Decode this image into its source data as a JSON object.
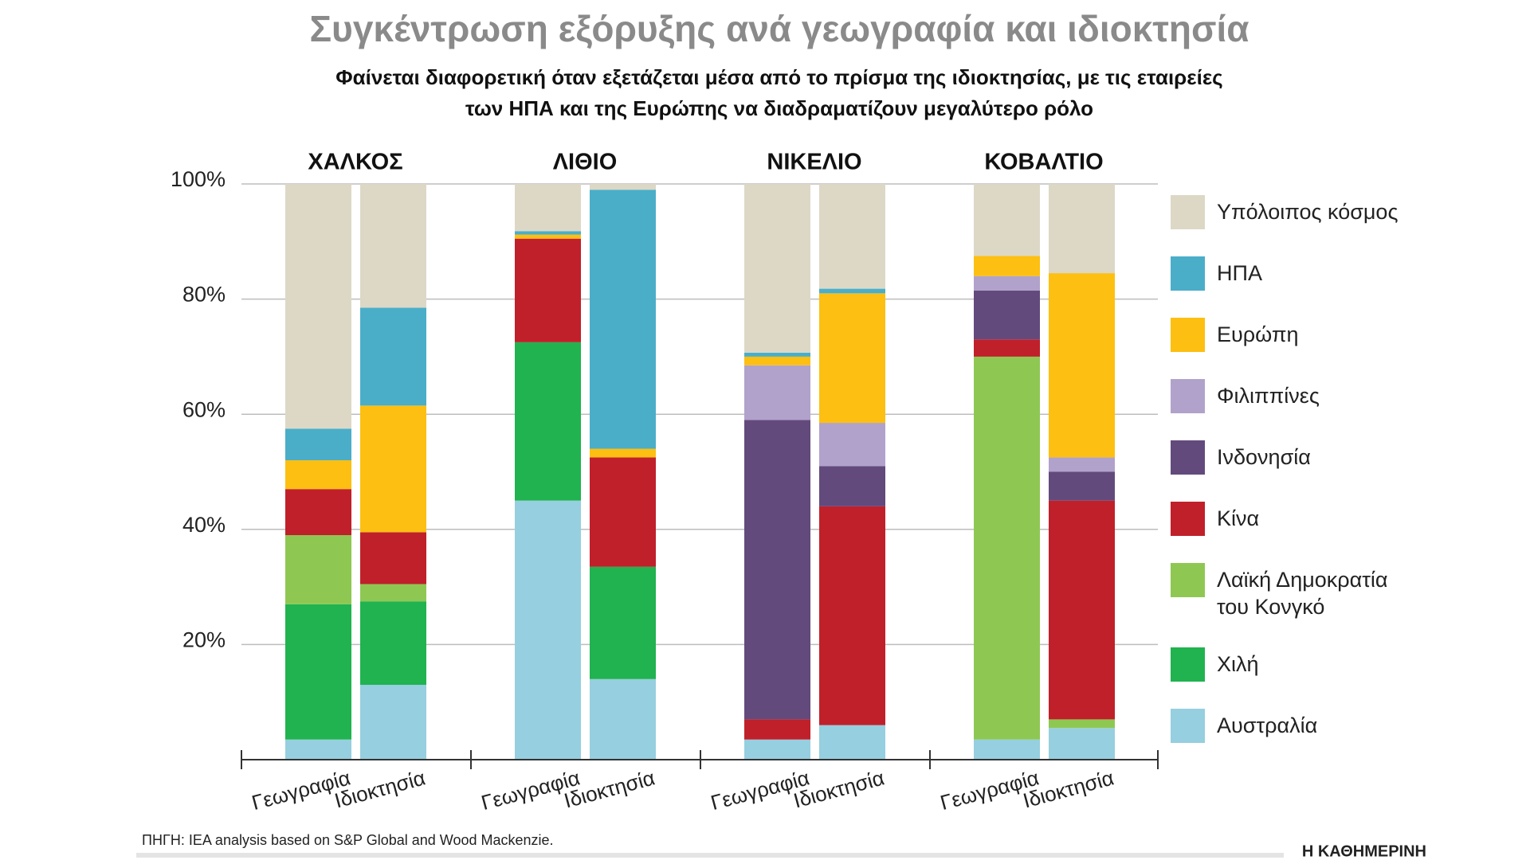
{
  "chart_data": {
    "type": "stacked_bar",
    "title": "Συγκέντρωση εξόρυξης ανά γεωγραφία και ιδιοκτησία",
    "subtitle": [
      "Φαίνεται διαφορετική όταν εξετάζεται μέσα από το πρίσμα της ιδιοκτησίας, με τις εταιρείες",
      "των ΗΠΑ και της Ευρώπης να διαδραματίζουν μεγαλύτερο ρόλο"
    ],
    "groups": [
      "ΧΑΛΚΟΣ",
      "ΛΙΘΙΟ",
      "ΝΙΚΕΛΙΟ",
      "ΚΟΒΑΛΤΙΟ"
    ],
    "categories": [
      "Γεωγραφία",
      "Ιδιοκτησία",
      "Γεωγραφία",
      "Ιδιοκτησία",
      "Γεωγραφία",
      "Ιδιοκτησία",
      "Γεωγραφία",
      "Ιδιοκτησία"
    ],
    "ylim": [
      0,
      100
    ],
    "yticks": [
      {
        "value": 20,
        "label": "20%"
      },
      {
        "value": 40,
        "label": "40%"
      },
      {
        "value": 60,
        "label": "60%"
      },
      {
        "value": 80,
        "label": "80%"
      },
      {
        "value": 100,
        "label": "100%"
      }
    ],
    "grid": true,
    "series": [
      {
        "name": "Αυστραλία",
        "color": "#96cfdf",
        "values": [
          3.5,
          13,
          45,
          14,
          3.5,
          6,
          3.5,
          5.5
        ]
      },
      {
        "name": "Χιλή",
        "color": "#20b34f",
        "values": [
          23.5,
          14.5,
          27.5,
          19.5,
          0,
          0,
          0,
          0
        ]
      },
      {
        "name": "Λαϊκή Δημοκρατία του Κονγκό",
        "color": "#8ec852",
        "values": [
          12,
          3,
          0,
          0,
          0,
          0,
          66.5,
          1.5
        ]
      },
      {
        "name": "Κίνα",
        "color": "#c0202a",
        "values": [
          8,
          9,
          18,
          19,
          3.5,
          38,
          3,
          38
        ]
      },
      {
        "name": "Ινδονησία",
        "color": "#634a7d",
        "values": [
          0,
          0,
          0,
          0,
          52,
          7,
          8.5,
          5
        ]
      },
      {
        "name": "Φιλιππίνες",
        "color": "#b1a2cb",
        "values": [
          0,
          0,
          0,
          0,
          9.5,
          7.5,
          2.5,
          2.5
        ]
      },
      {
        "name": "Ευρώπη",
        "color": "#fdbf11",
        "values": [
          5,
          22,
          0.7,
          1.5,
          1.5,
          22.5,
          3.5,
          32
        ]
      },
      {
        "name": "ΗΠΑ",
        "color": "#4aaec9",
        "values": [
          5.5,
          17,
          0.6,
          45,
          0.7,
          0.8,
          0,
          0
        ]
      },
      {
        "name": "Υπόλοιπος κόσμος",
        "color": "#ddd8c6",
        "values": [
          42.5,
          21.5,
          8.2,
          1,
          29.3,
          18.2,
          12.5,
          15.5
        ]
      }
    ],
    "source": "ΠΗΓΗ: IEA analysis based on S&P Global and Wood Mackenzie.",
    "publisher": "Η ΚΑΘΗΜΕΡΙΝΗ"
  }
}
